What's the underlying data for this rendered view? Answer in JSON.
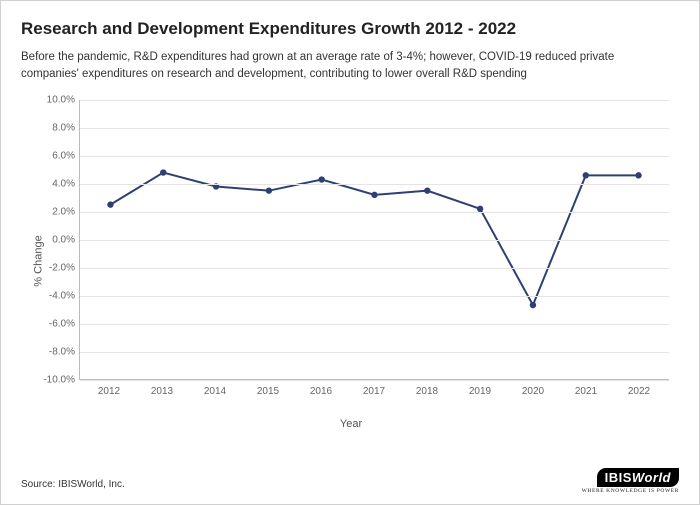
{
  "title": "Research and Development Expenditures Growth 2012 - 2022",
  "subtitle": "Before the pandemic, R&D expenditures had grown at an average rate of 3-4%; however, COVID-19 reduced private companies' expenditures on research and development, contributing to lower overall R&D spending",
  "source": "Source: IBISWorld, Inc.",
  "logo_main": "IBIS",
  "logo_accent": "World",
  "logo_tagline": "WHERE KNOWLEDGE IS POWER",
  "chart": {
    "type": "line",
    "xlabel": "Year",
    "ylabel": "% Change",
    "years": [
      2012,
      2013,
      2014,
      2015,
      2016,
      2017,
      2018,
      2019,
      2020,
      2021,
      2022
    ],
    "values": [
      2.5,
      4.8,
      3.8,
      3.5,
      4.3,
      3.2,
      3.5,
      2.2,
      -4.7,
      4.6,
      4.6
    ],
    "ylim": [
      -10,
      10
    ],
    "ytick_step": 2,
    "ytick_format_suffix": "%",
    "ytick_decimals": 1,
    "line_color": "#2f3f73",
    "line_width": 2,
    "marker_radius": 3.2,
    "marker_color": "#2f3f73",
    "grid_color": "#e4e4e4",
    "axis_color": "#bcbcbc",
    "background_color": "#ffffff",
    "tick_font_size": 10,
    "label_font_size": 11,
    "title_font_size": 17,
    "subtitle_font_size": 11.5
  }
}
